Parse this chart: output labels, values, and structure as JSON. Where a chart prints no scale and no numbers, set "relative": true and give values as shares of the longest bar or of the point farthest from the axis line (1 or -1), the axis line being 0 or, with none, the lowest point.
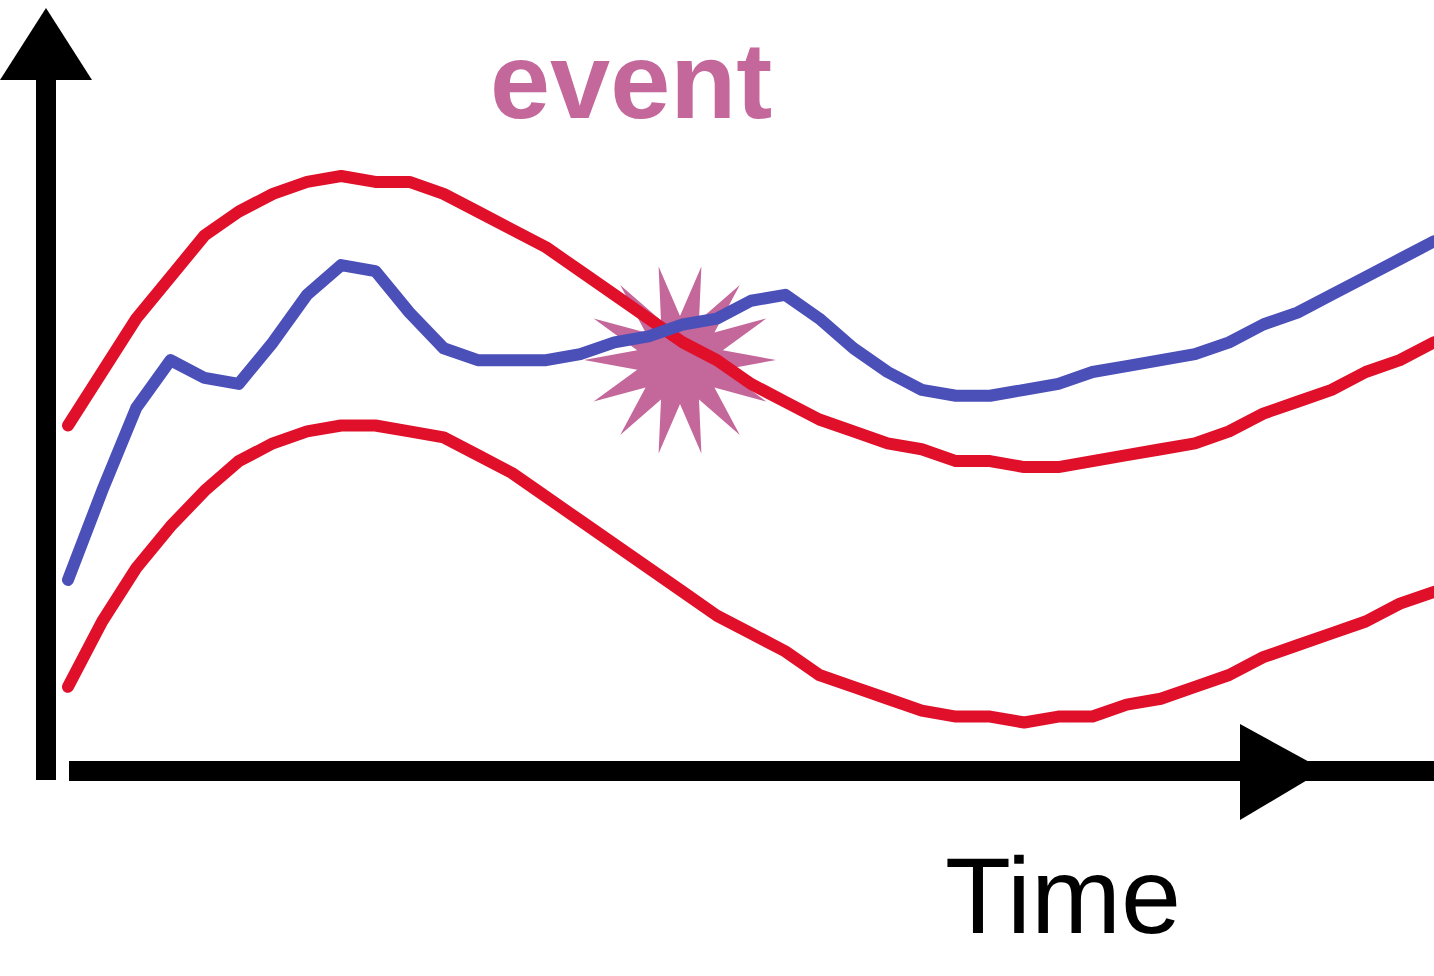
{
  "chart_data": {
    "type": "line",
    "relative": true,
    "xlabel": "Time",
    "annotations": [
      "event"
    ],
    "categories": [
      null,
      null,
      null,
      null,
      null,
      null,
      null,
      null,
      null,
      null,
      null,
      null,
      null,
      null,
      null,
      null,
      null,
      null,
      null,
      null,
      null,
      null,
      null,
      null,
      null,
      null,
      null,
      null,
      null,
      null,
      null,
      null,
      null,
      null,
      null,
      null,
      null,
      null,
      null,
      null,
      null
    ],
    "series": [
      {
        "color": "#e0102a",
        "values": [
          0.58,
          0.67,
          0.76,
          0.83,
          0.9,
          0.94,
          0.97,
          0.99,
          1,
          0.99,
          0.99,
          0.97,
          0.94,
          0.91,
          0.88,
          0.84,
          0.8,
          0.76,
          0.72,
          0.69,
          0.65,
          0.62,
          0.59,
          0.57,
          0.55,
          0.54,
          0.52,
          0.52,
          0.51,
          0.51,
          0.52,
          0.53,
          0.54,
          0.55,
          0.57,
          0.6,
          0.62,
          0.64,
          0.67,
          0.69,
          0.72
        ]
      },
      {
        "color": "#e0102a",
        "values": [
          0.14,
          0.25,
          0.34,
          0.41,
          0.47,
          0.52,
          0.55,
          0.57,
          0.58,
          0.58,
          0.57,
          0.56,
          0.53,
          0.5,
          0.46,
          0.42,
          0.38,
          0.34,
          0.3,
          0.26,
          0.23,
          0.2,
          0.16,
          0.14,
          0.12,
          0.1,
          0.09,
          0.09,
          0.08,
          0.09,
          0.09,
          0.11,
          0.12,
          0.14,
          0.16,
          0.19,
          0.21,
          0.23,
          0.25,
          0.28,
          0.3
        ]
      },
      {
        "color": "#4b4fb8",
        "values": [
          0.32,
          0.47,
          0.61,
          0.69,
          0.66,
          0.65,
          0.72,
          0.8,
          0.85,
          0.84,
          0.77,
          0.71,
          0.69,
          0.69,
          0.69,
          0.7,
          0.72,
          0.73,
          0.75,
          0.76,
          0.79,
          0.8,
          0.76,
          0.71,
          0.67,
          0.64,
          0.63,
          0.63,
          0.64,
          0.65,
          0.67,
          0.68,
          0.69,
          0.7,
          0.72,
          0.75,
          0.77,
          0.8,
          0.83,
          0.86,
          0.89
        ]
      }
    ]
  }
}
